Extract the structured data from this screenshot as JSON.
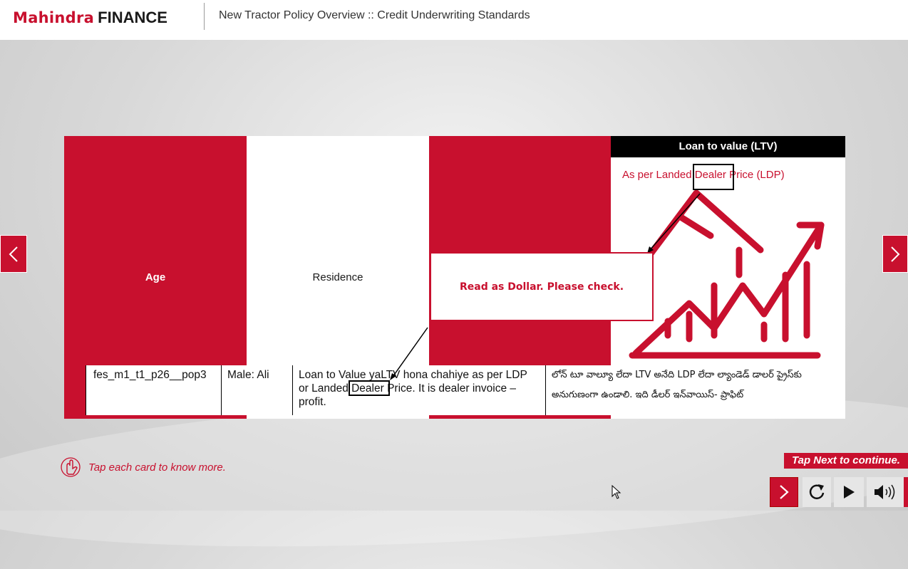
{
  "header": {
    "logo_brand": "Mahindra",
    "logo_sub": "FINANCE",
    "title": "New Tractor Policy Overview :: Credit Underwriting Standards"
  },
  "cards": {
    "age_label": "Age",
    "residence_label": "Residence",
    "ltv_title": "Loan to value (LTV)",
    "ltv_text": "As per Landed Dealer Price (LDP)"
  },
  "review_comment": "Read as Dollar. Please check.",
  "subtitle_row": {
    "id": "fes_m1_t1_p26__pop3",
    "speaker": "Male: Ali",
    "source": "Loan to Value yaLTV hona chahiye as per LDP or Landed Dealer Price. It is dealer invoice – profit.",
    "translation": "లోన్ టూ వాల్యూ లేదా LTV అనేది LDP లేదా ల్యాండెడ్ డాలర్ ప్రైస్‌కు అనుగుణంగా ఉండాలి. ఇది డీలర్ ఇన్‌వాయిస్- ప్రాఫిట్"
  },
  "footer": {
    "hint": "Tap each card to know more.",
    "tap_next": "Tap Next to continue."
  },
  "icons": {
    "prev": "chevron-left-icon",
    "next": "chevron-right-icon",
    "hint": "tap-hand-icon",
    "replay": "replay-icon",
    "play": "play-icon",
    "volume": "volume-icon"
  },
  "colors": {
    "brand_red": "#c8102e",
    "black": "#000000"
  }
}
